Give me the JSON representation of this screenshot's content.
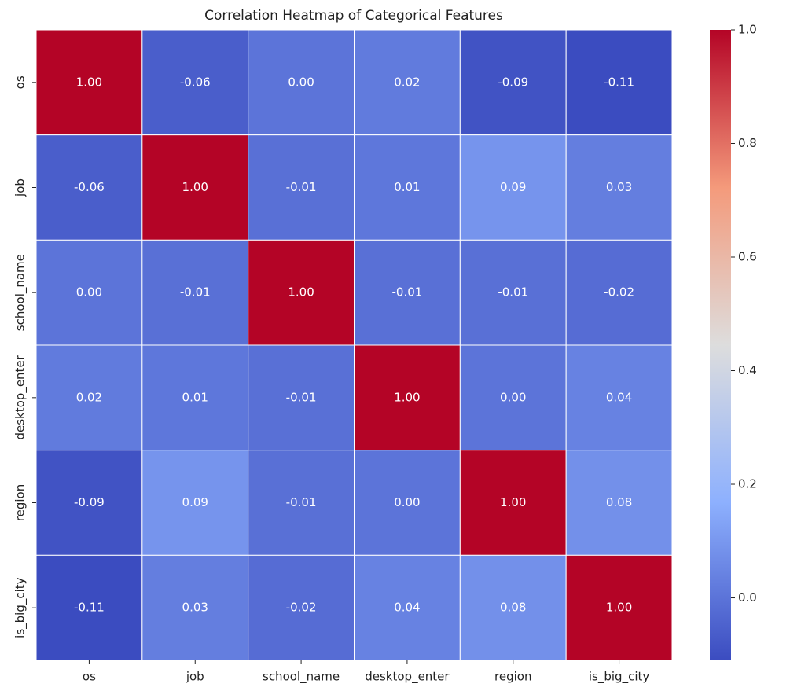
{
  "chart_data": {
    "type": "heatmap",
    "title": "Correlation Heatmap of Categorical Features",
    "x_categories": [
      "os",
      "job",
      "school_name",
      "desktop_enter",
      "region",
      "is_big_city"
    ],
    "y_categories": [
      "os",
      "job",
      "school_name",
      "desktop_enter",
      "region",
      "is_big_city"
    ],
    "values": [
      [
        1.0,
        -0.06,
        0.0,
        0.02,
        -0.09,
        -0.11
      ],
      [
        -0.06,
        1.0,
        -0.01,
        0.01,
        0.09,
        0.03
      ],
      [
        0.0,
        -0.01,
        1.0,
        -0.01,
        -0.01,
        -0.02
      ],
      [
        0.02,
        0.01,
        -0.01,
        1.0,
        0.0,
        0.04
      ],
      [
        -0.09,
        0.09,
        -0.01,
        0.0,
        1.0,
        0.08
      ],
      [
        -0.11,
        0.03,
        -0.02,
        0.04,
        0.08,
        1.0
      ]
    ],
    "value_labels": [
      [
        "1.00",
        "-0.06",
        "0.00",
        "0.02",
        "-0.09",
        "-0.11"
      ],
      [
        "-0.06",
        "1.00",
        "-0.01",
        "0.01",
        "0.09",
        "0.03"
      ],
      [
        "0.00",
        "-0.01",
        "1.00",
        "-0.01",
        "-0.01",
        "-0.02"
      ],
      [
        "0.02",
        "0.01",
        "-0.01",
        "1.00",
        "0.00",
        "0.04"
      ],
      [
        "-0.09",
        "0.09",
        "-0.01",
        "0.00",
        "1.00",
        "0.08"
      ],
      [
        "-0.11",
        "0.03",
        "-0.02",
        "0.04",
        "0.08",
        "1.00"
      ]
    ],
    "zlim": [
      -0.11,
      1.0
    ],
    "colorbar_ticks": [
      {
        "value": 0,
        "label": "0.0"
      },
      0.2,
      0.4,
      0.6,
      0.8,
      {
        "value": 1,
        "label": "1.0"
      }
    ],
    "colormap": [
      "#3b4cc0",
      "#8db0fe",
      "#dddddd",
      "#f49a7b",
      "#b40426"
    ]
  }
}
